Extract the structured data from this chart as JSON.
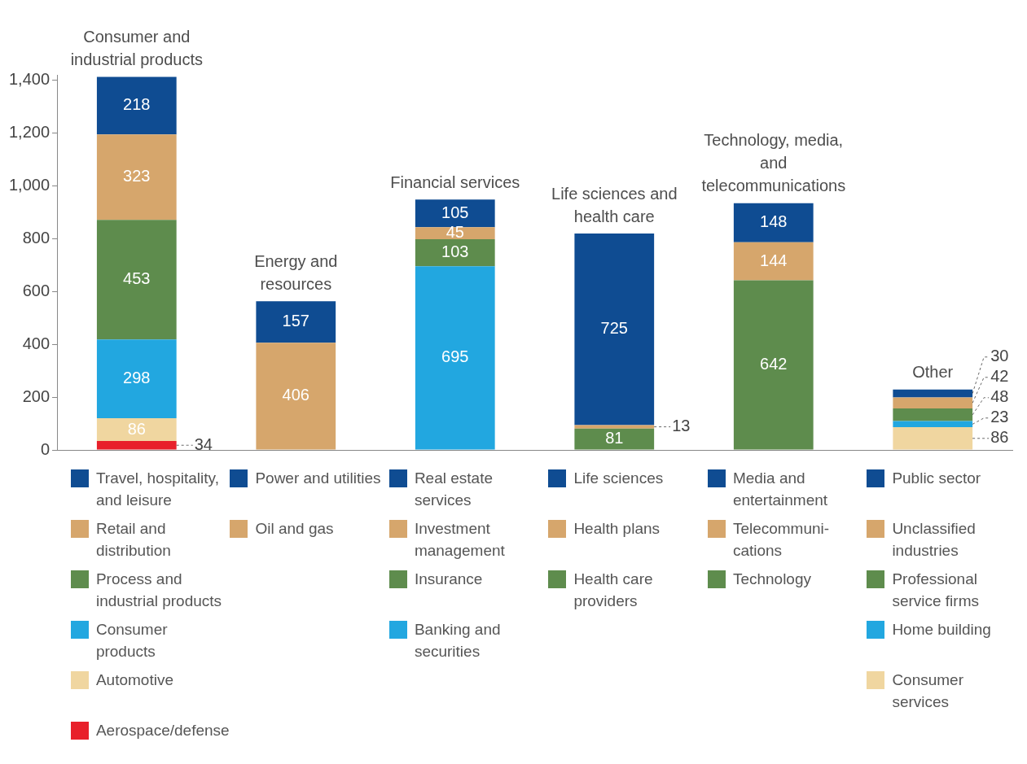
{
  "chart_data": {
    "type": "bar",
    "stacked": true,
    "data_labels": true,
    "grid": false,
    "legend": "bottom",
    "categories": [
      "Consumer and industrial products",
      "Energy and resources",
      "Financial services",
      "Life sciences and health care",
      "Technology, media, and telecommunications",
      "Other"
    ],
    "ylim": [
      0,
      1420
    ],
    "yticks": [
      0,
      200,
      400,
      600,
      800,
      {
        "value": 1000,
        "label": "1,000"
      },
      {
        "value": 1200,
        "label": "1,200"
      },
      {
        "value": 1400,
        "label": "1,400"
      }
    ],
    "series": [
      {
        "name": "Aerospace/defense",
        "color": "#e8202a",
        "values": [
          34,
          null,
          null,
          null,
          null,
          null
        ]
      },
      {
        "name": "Automotive",
        "color": "#f0d6a0",
        "values": [
          86,
          null,
          null,
          null,
          null,
          null
        ]
      },
      {
        "name": "Consumer products",
        "color": "#22a7e0",
        "values": [
          298,
          null,
          null,
          null,
          null,
          null
        ]
      },
      {
        "name": "Process and industrial products",
        "color": "#5e8c4d",
        "values": [
          453,
          null,
          null,
          null,
          null,
          null
        ]
      },
      {
        "name": "Retail and distribution",
        "color": "#d6a66c",
        "values": [
          323,
          null,
          null,
          null,
          null,
          null
        ]
      },
      {
        "name": "Travel, hospitality, and leisure",
        "color": "#0f4c92",
        "values": [
          218,
          null,
          null,
          null,
          null,
          null
        ]
      },
      {
        "name": "Oil and gas",
        "color": "#d6a66c",
        "values": [
          null,
          406,
          null,
          null,
          null,
          null
        ]
      },
      {
        "name": "Power and utilities",
        "color": "#0f4c92",
        "values": [
          null,
          157,
          null,
          null,
          null,
          null
        ]
      },
      {
        "name": "Banking and securities",
        "color": "#22a7e0",
        "values": [
          null,
          null,
          695,
          null,
          null,
          null
        ]
      },
      {
        "name": "Insurance",
        "color": "#5e8c4d",
        "values": [
          null,
          null,
          103,
          null,
          null,
          null
        ]
      },
      {
        "name": "Investment management",
        "color": "#d6a66c",
        "values": [
          null,
          null,
          45,
          null,
          null,
          null
        ]
      },
      {
        "name": "Real estate services",
        "color": "#0f4c92",
        "values": [
          null,
          null,
          105,
          null,
          null,
          null
        ]
      },
      {
        "name": "Health care providers",
        "color": "#5e8c4d",
        "values": [
          null,
          null,
          null,
          81,
          null,
          null
        ]
      },
      {
        "name": "Health plans",
        "color": "#d6a66c",
        "values": [
          null,
          null,
          null,
          13,
          null,
          null
        ]
      },
      {
        "name": "Life sciences",
        "color": "#0f4c92",
        "values": [
          null,
          null,
          null,
          725,
          null,
          null
        ]
      },
      {
        "name": "Technology",
        "color": "#5e8c4d",
        "values": [
          null,
          null,
          null,
          null,
          642,
          null
        ]
      },
      {
        "name": "Telecommuni-cations",
        "color": "#d6a66c",
        "values": [
          null,
          null,
          null,
          null,
          144,
          null
        ]
      },
      {
        "name": "Media and entertainment",
        "color": "#0f4c92",
        "values": [
          null,
          null,
          null,
          null,
          148,
          null
        ]
      },
      {
        "name": "Consumer services",
        "color": "#f0d6a0",
        "values": [
          null,
          null,
          null,
          null,
          null,
          86
        ]
      },
      {
        "name": "Home building",
        "color": "#22a7e0",
        "values": [
          null,
          null,
          null,
          null,
          null,
          23
        ]
      },
      {
        "name": "Professional service firms",
        "color": "#5e8c4d",
        "values": [
          null,
          null,
          null,
          null,
          null,
          48
        ]
      },
      {
        "name": "Unclassified industries",
        "color": "#d6a66c",
        "values": [
          null,
          null,
          null,
          null,
          null,
          42
        ]
      },
      {
        "name": "Public sector",
        "color": "#0f4c92",
        "values": [
          null,
          null,
          null,
          null,
          null,
          30
        ]
      }
    ]
  }
}
